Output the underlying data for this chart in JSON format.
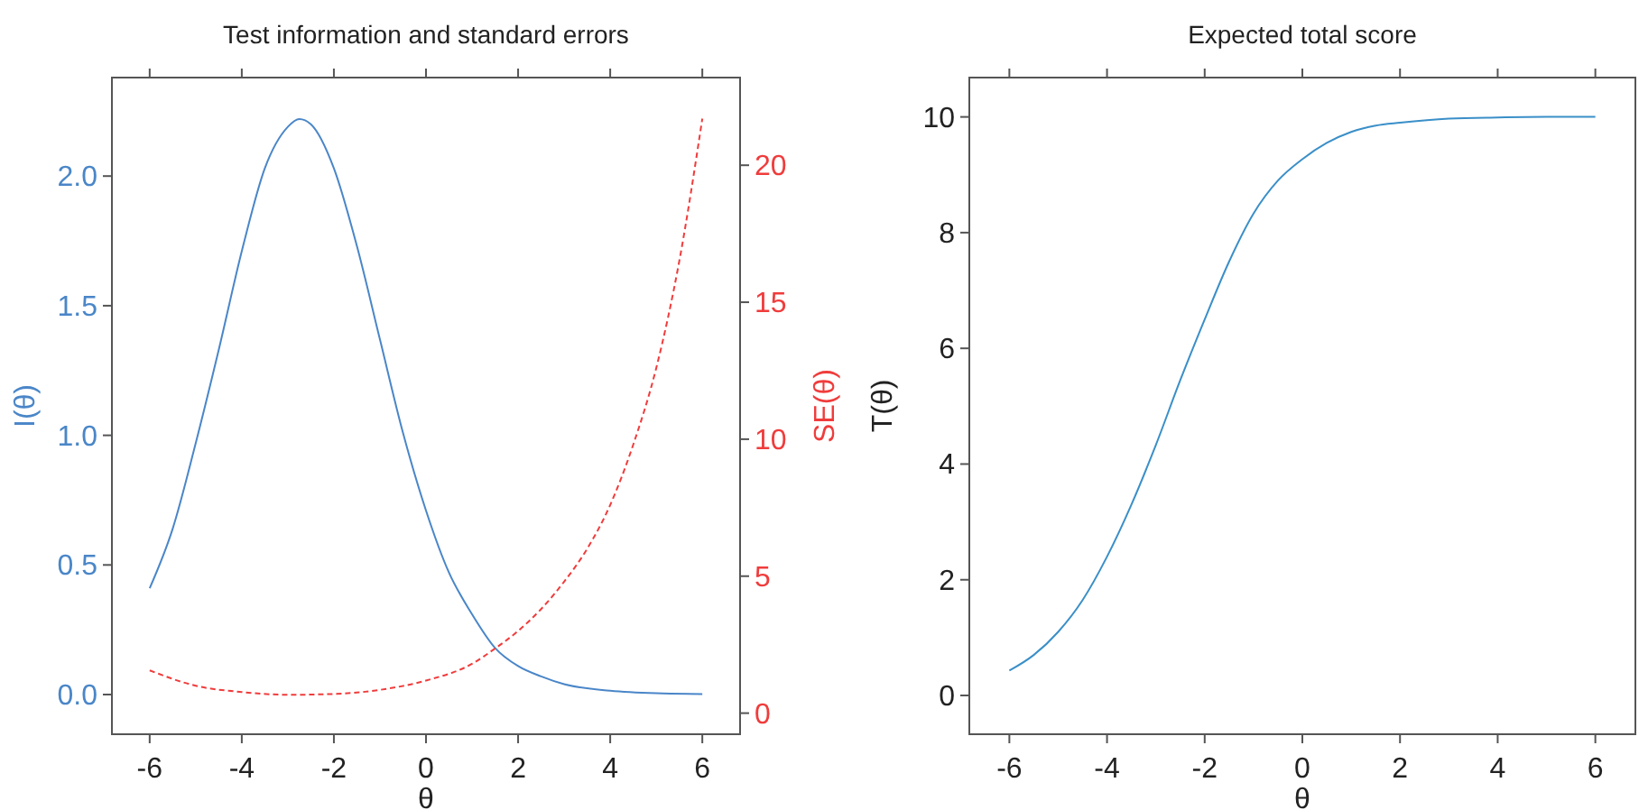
{
  "chart_data": [
    {
      "type": "line",
      "title": "Test information and standard errors",
      "xlabel": "θ",
      "ylabel": "I(θ)",
      "y2label": "SE(θ)",
      "xlim": [
        -6.82,
        6.82
      ],
      "xticks": [
        -6,
        -4,
        -2,
        0,
        2,
        4,
        6
      ],
      "ylim": [
        -0.153,
        2.38
      ],
      "yticks": [
        {
          "value": 0,
          "label": "0.0"
        },
        {
          "value": 0.5,
          "label": "0.5"
        },
        {
          "value": 1,
          "label": "1.0"
        },
        {
          "value": 1.5,
          "label": "1.5"
        },
        {
          "value": 2,
          "label": "2.0"
        }
      ],
      "y2lim": [
        -0.77,
        23.2
      ],
      "y2ticks": [
        0,
        5,
        10,
        15,
        20
      ],
      "x": [
        -6,
        -5.5,
        -5,
        -4.5,
        -4,
        -3.5,
        -3,
        -2.75,
        -2.5,
        -2,
        -1.5,
        -1,
        -0.5,
        0,
        0.5,
        1,
        1.5,
        2,
        2.5,
        3,
        4,
        5,
        6
      ],
      "series": [
        {
          "color": "#4a86c8",
          "line_style": "solid",
          "values": [
            0.41,
            0.64,
            0.97,
            1.33,
            1.71,
            2.03,
            2.19,
            2.22,
            2.2,
            2.03,
            1.73,
            1.37,
            1.01,
            0.71,
            0.47,
            0.31,
            0.18,
            0.11,
            0.07,
            0.04,
            0.015,
            0.005,
            0.002
          ]
        },
        {
          "color": "#f03c3c",
          "axis": "y2",
          "line_style": "dashed",
          "x": [
            -6,
            -5,
            -4,
            -3,
            -2,
            -1,
            0,
            1,
            1.5,
            2,
            2.5,
            3,
            3.5,
            4,
            4.5,
            5,
            5.5,
            6
          ],
          "values": [
            1.56,
            1.0,
            0.77,
            0.67,
            0.7,
            0.85,
            1.19,
            1.8,
            2.36,
            3.0,
            3.8,
            4.8,
            6.0,
            7.6,
            9.8,
            12.6,
            16.5,
            21.7
          ]
        }
      ],
      "grid": false
    },
    {
      "type": "line",
      "title": "Expected total score",
      "xlabel": "θ",
      "ylabel": "T(θ)",
      "xlim": [
        -6.82,
        6.82
      ],
      "xticks": [
        -6,
        -4,
        -2,
        0,
        2,
        4,
        6
      ],
      "ylim": [
        -0.67,
        10.68
      ],
      "yticks": [
        0,
        2,
        4,
        6,
        8,
        10
      ],
      "x": [
        -6,
        -5.5,
        -5,
        -4.5,
        -4,
        -3.5,
        -3,
        -2.5,
        -2,
        -1.5,
        -1,
        -0.5,
        0,
        0.5,
        1,
        1.5,
        2,
        3,
        4,
        5,
        6
      ],
      "series": [
        {
          "color": "#3a8fc8",
          "line_style": "solid",
          "values": [
            0.43,
            0.7,
            1.1,
            1.65,
            2.4,
            3.3,
            4.33,
            5.45,
            6.5,
            7.5,
            8.33,
            8.9,
            9.27,
            9.55,
            9.74,
            9.85,
            9.9,
            9.97,
            9.99,
            10.0,
            10.0
          ]
        }
      ],
      "grid": false
    }
  ]
}
